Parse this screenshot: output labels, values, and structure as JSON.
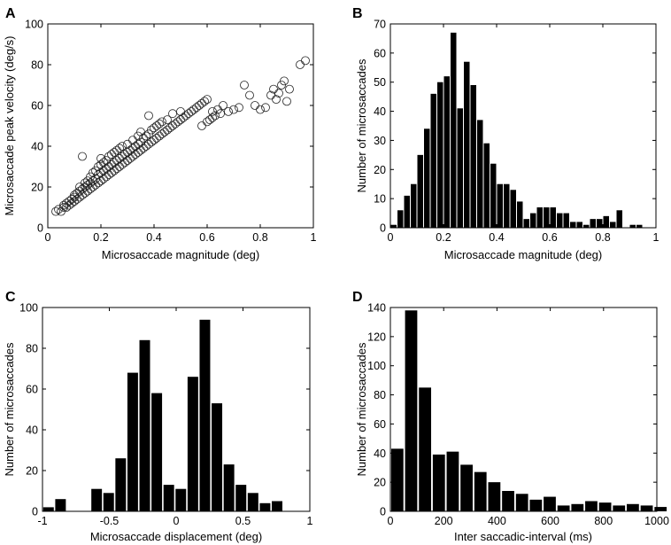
{
  "figure": {
    "title": ""
  },
  "chart_data": [
    {
      "panel": "A",
      "type": "scatter",
      "xlabel": "Microsaccade magnitude (deg)",
      "ylabel": "Microsaccade peak velocity (deg/s)",
      "xlim": [
        0,
        1
      ],
      "ylim": [
        0,
        100
      ],
      "xticks": [
        0,
        0.2,
        0.4,
        0.6,
        0.8,
        1
      ],
      "xtick_labels": [
        "0",
        "0.2",
        "0.4",
        "0.6",
        "0.8",
        "1"
      ],
      "yticks": [
        0,
        20,
        40,
        60,
        80,
        100
      ],
      "ytick_labels": [
        "0",
        "20",
        "40",
        "60",
        "80",
        "100"
      ],
      "marker": "open-circle",
      "points": [
        [
          0.03,
          8
        ],
        [
          0.04,
          9
        ],
        [
          0.05,
          8
        ],
        [
          0.06,
          10
        ],
        [
          0.06,
          11
        ],
        [
          0.07,
          10
        ],
        [
          0.07,
          12
        ],
        [
          0.08,
          11
        ],
        [
          0.08,
          13
        ],
        [
          0.09,
          12
        ],
        [
          0.09,
          14
        ],
        [
          0.1,
          13
        ],
        [
          0.1,
          15
        ],
        [
          0.1,
          16
        ],
        [
          0.11,
          14
        ],
        [
          0.11,
          17
        ],
        [
          0.12,
          15
        ],
        [
          0.12,
          18
        ],
        [
          0.12,
          20
        ],
        [
          0.13,
          16
        ],
        [
          0.13,
          19
        ],
        [
          0.13,
          35
        ],
        [
          0.14,
          17
        ],
        [
          0.14,
          20
        ],
        [
          0.14,
          22
        ],
        [
          0.15,
          18
        ],
        [
          0.15,
          21
        ],
        [
          0.15,
          23
        ],
        [
          0.16,
          19
        ],
        [
          0.16,
          22
        ],
        [
          0.16,
          25
        ],
        [
          0.17,
          20
        ],
        [
          0.17,
          23
        ],
        [
          0.17,
          27
        ],
        [
          0.18,
          21
        ],
        [
          0.18,
          24
        ],
        [
          0.18,
          28
        ],
        [
          0.19,
          22
        ],
        [
          0.19,
          26
        ],
        [
          0.19,
          30
        ],
        [
          0.2,
          23
        ],
        [
          0.2,
          27
        ],
        [
          0.2,
          31
        ],
        [
          0.2,
          34
        ],
        [
          0.21,
          24
        ],
        [
          0.21,
          28
        ],
        [
          0.21,
          32
        ],
        [
          0.22,
          25
        ],
        [
          0.22,
          29
        ],
        [
          0.22,
          33
        ],
        [
          0.23,
          26
        ],
        [
          0.23,
          30
        ],
        [
          0.23,
          35
        ],
        [
          0.24,
          27
        ],
        [
          0.24,
          31
        ],
        [
          0.24,
          36
        ],
        [
          0.25,
          28
        ],
        [
          0.25,
          32
        ],
        [
          0.25,
          37
        ],
        [
          0.26,
          29
        ],
        [
          0.26,
          33
        ],
        [
          0.26,
          38
        ],
        [
          0.27,
          30
        ],
        [
          0.27,
          34
        ],
        [
          0.27,
          39
        ],
        [
          0.28,
          31
        ],
        [
          0.28,
          35
        ],
        [
          0.28,
          40
        ],
        [
          0.29,
          32
        ],
        [
          0.29,
          36
        ],
        [
          0.3,
          33
        ],
        [
          0.3,
          37
        ],
        [
          0.3,
          41
        ],
        [
          0.31,
          34
        ],
        [
          0.31,
          38
        ],
        [
          0.32,
          35
        ],
        [
          0.32,
          39
        ],
        [
          0.32,
          43
        ],
        [
          0.33,
          36
        ],
        [
          0.33,
          40
        ],
        [
          0.34,
          37
        ],
        [
          0.34,
          41
        ],
        [
          0.34,
          45
        ],
        [
          0.35,
          38
        ],
        [
          0.35,
          42
        ],
        [
          0.35,
          47
        ],
        [
          0.36,
          39
        ],
        [
          0.36,
          44
        ],
        [
          0.37,
          40
        ],
        [
          0.37,
          45
        ],
        [
          0.38,
          41
        ],
        [
          0.38,
          46
        ],
        [
          0.38,
          55
        ],
        [
          0.39,
          42
        ],
        [
          0.39,
          48
        ],
        [
          0.4,
          43
        ],
        [
          0.4,
          49
        ],
        [
          0.41,
          44
        ],
        [
          0.41,
          50
        ],
        [
          0.42,
          45
        ],
        [
          0.42,
          51
        ],
        [
          0.43,
          46
        ],
        [
          0.43,
          52
        ],
        [
          0.44,
          47
        ],
        [
          0.45,
          48
        ],
        [
          0.45,
          53
        ],
        [
          0.46,
          49
        ],
        [
          0.47,
          50
        ],
        [
          0.47,
          56
        ],
        [
          0.48,
          51
        ],
        [
          0.49,
          52
        ],
        [
          0.5,
          53
        ],
        [
          0.5,
          57
        ],
        [
          0.51,
          54
        ],
        [
          0.52,
          55
        ],
        [
          0.53,
          56
        ],
        [
          0.54,
          57
        ],
        [
          0.55,
          58
        ],
        [
          0.56,
          59
        ],
        [
          0.57,
          60
        ],
        [
          0.58,
          61
        ],
        [
          0.58,
          50
        ],
        [
          0.59,
          62
        ],
        [
          0.6,
          63
        ],
        [
          0.6,
          52
        ],
        [
          0.61,
          53
        ],
        [
          0.62,
          54
        ],
        [
          0.62,
          57
        ],
        [
          0.63,
          55
        ],
        [
          0.64,
          58
        ],
        [
          0.65,
          56
        ],
        [
          0.66,
          60
        ],
        [
          0.68,
          57
        ],
        [
          0.7,
          58
        ],
        [
          0.72,
          59
        ],
        [
          0.74,
          70
        ],
        [
          0.76,
          65
        ],
        [
          0.78,
          60
        ],
        [
          0.8,
          58
        ],
        [
          0.82,
          59
        ],
        [
          0.84,
          65
        ],
        [
          0.85,
          68
        ],
        [
          0.86,
          63
        ],
        [
          0.87,
          66
        ],
        [
          0.88,
          70
        ],
        [
          0.89,
          72
        ],
        [
          0.9,
          62
        ],
        [
          0.91,
          68
        ],
        [
          0.95,
          80
        ],
        [
          0.97,
          82
        ]
      ]
    },
    {
      "panel": "B",
      "type": "bar",
      "xlabel": "Microsaccade magnitude (deg)",
      "ylabel": "Number of microsaccades",
      "xlim": [
        0,
        1
      ],
      "ylim": [
        0,
        70
      ],
      "bin_width": 0.025,
      "bin_start": 0,
      "xticks": [
        0,
        0.2,
        0.4,
        0.6,
        0.8,
        1
      ],
      "xtick_labels": [
        "0",
        "0.2",
        "0.4",
        "0.6",
        "0.8",
        "1"
      ],
      "yticks": [
        0,
        10,
        20,
        30,
        40,
        50,
        60,
        70
      ],
      "ytick_labels": [
        "0",
        "10",
        "20",
        "30",
        "40",
        "50",
        "60",
        "70"
      ],
      "values": [
        1,
        6,
        11,
        15,
        25,
        34,
        46,
        50,
        52,
        67,
        41,
        57,
        49,
        37,
        29,
        22,
        15,
        15,
        13,
        9,
        3,
        5,
        7,
        7,
        7,
        5,
        5,
        2,
        2,
        1,
        3,
        3,
        4,
        2,
        6,
        0,
        1,
        1,
        0,
        0
      ]
    },
    {
      "panel": "C",
      "type": "bar",
      "xlabel": "Microsaccade displacement (deg)",
      "ylabel": "Number of microsaccades",
      "xlim": [
        -1,
        1
      ],
      "ylim": [
        0,
        100
      ],
      "bin_width": 0.09,
      "bin_start": -1,
      "xticks": [
        -1,
        -0.5,
        0,
        0.5,
        1
      ],
      "xtick_labels": [
        "-1",
        "-0.5",
        "0",
        "0.5",
        "1"
      ],
      "yticks": [
        0,
        20,
        40,
        60,
        80,
        100
      ],
      "ytick_labels": [
        "0",
        "20",
        "40",
        "60",
        "80",
        "100"
      ],
      "values": [
        2,
        6,
        0,
        0,
        11,
        9,
        26,
        68,
        84,
        58,
        13,
        11,
        66,
        94,
        53,
        23,
        13,
        9,
        4,
        5,
        0,
        0
      ]
    },
    {
      "panel": "D",
      "type": "bar",
      "xlabel": "Inter saccadic-interval (ms)",
      "ylabel": "Number of microsaccades",
      "xlim": [
        0,
        1000
      ],
      "ylim": [
        0,
        140
      ],
      "bin_width": 52,
      "bin_start": 0,
      "xticks": [
        0,
        200,
        400,
        600,
        800,
        1000
      ],
      "xtick_labels": [
        "0",
        "200",
        "400",
        "600",
        "800",
        "1000"
      ],
      "yticks": [
        0,
        20,
        40,
        60,
        80,
        100,
        120,
        140
      ],
      "ytick_labels": [
        "0",
        "20",
        "40",
        "60",
        "80",
        "100",
        "120",
        "140"
      ],
      "values": [
        43,
        138,
        85,
        39,
        41,
        32,
        27,
        20,
        14,
        12,
        8,
        10,
        4,
        5,
        7,
        6,
        4,
        5,
        4,
        3
      ]
    }
  ]
}
